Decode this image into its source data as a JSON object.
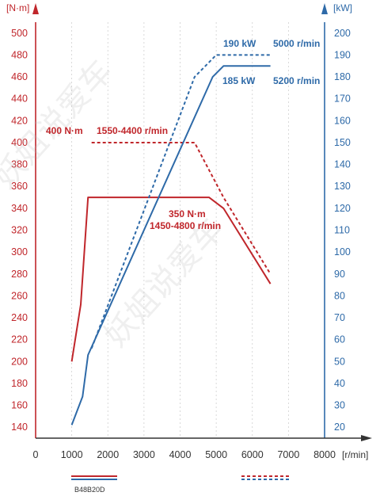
{
  "chart_data": {
    "type": "line",
    "x_axis": {
      "unit_label": "[r/min]",
      "ticks": [
        0,
        1000,
        2000,
        3000,
        4000,
        5000,
        6000,
        7000,
        8000
      ],
      "range": [
        0,
        8000
      ]
    },
    "y_left": {
      "unit_label": "[N·m]",
      "ticks": [
        140,
        160,
        180,
        200,
        220,
        240,
        260,
        280,
        300,
        320,
        340,
        360,
        380,
        400,
        420,
        440,
        460,
        480,
        500
      ],
      "range": [
        130,
        510
      ],
      "color": "#c0262b"
    },
    "y_right": {
      "unit_label": "[kW]",
      "ticks": [
        20,
        30,
        40,
        50,
        60,
        70,
        80,
        90,
        100,
        110,
        120,
        130,
        140,
        150,
        160,
        170,
        180,
        190,
        200
      ],
      "range": [
        15,
        205
      ],
      "color": "#2e6aa8"
    },
    "series": [
      {
        "axis": "left",
        "style": "solid",
        "color": "#c0262b",
        "points": [
          [
            1000,
            200
          ],
          [
            1250,
            252
          ],
          [
            1450,
            350
          ],
          [
            4800,
            350
          ],
          [
            5200,
            340
          ],
          [
            6500,
            271
          ]
        ]
      },
      {
        "axis": "left",
        "style": "dashed",
        "color": "#c0262b",
        "points": [
          [
            1550,
            400
          ],
          [
            4400,
            400
          ],
          [
            5200,
            350
          ],
          [
            6500,
            280
          ]
        ]
      },
      {
        "axis": "right",
        "style": "solid",
        "color": "#2e6aa8",
        "points": [
          [
            1000,
            21
          ],
          [
            1300,
            34
          ],
          [
            1450,
            53
          ],
          [
            4900,
            180
          ],
          [
            5200,
            185
          ],
          [
            6500,
            185
          ]
        ]
      },
      {
        "axis": "right",
        "style": "dashed",
        "color": "#2e6aa8",
        "points": [
          [
            1550,
            56
          ],
          [
            4400,
            180
          ],
          [
            5000,
            190
          ],
          [
            6500,
            190
          ]
        ]
      }
    ],
    "annotations": [
      {
        "text": "400 N·m",
        "color": "red"
      },
      {
        "text": "1550-4400 r/min",
        "color": "red"
      },
      {
        "text": "350 N·m",
        "color": "red"
      },
      {
        "text": "1450-4800 r/min",
        "color": "red"
      },
      {
        "text": "190 kW",
        "color": "blue"
      },
      {
        "text": "5000 r/min",
        "color": "blue"
      },
      {
        "text": "185 kW",
        "color": "blue"
      },
      {
        "text": "5200 r/min",
        "color": "blue"
      }
    ],
    "legend": [
      {
        "label": "B48B20D",
        "style": "solid"
      },
      {
        "label": "",
        "style": "dashed"
      }
    ],
    "grid": true,
    "watermark": "妖姐说爱车"
  }
}
